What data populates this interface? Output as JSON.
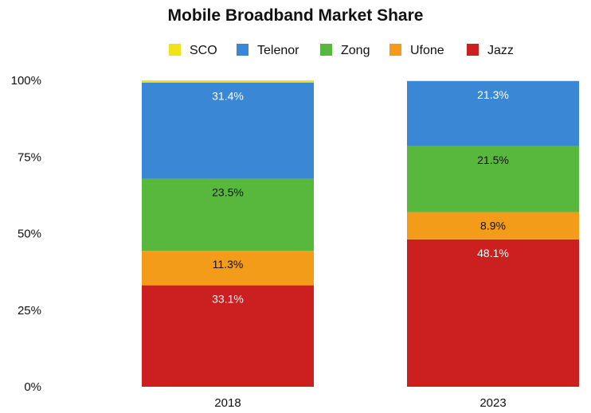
{
  "chart_data": {
    "type": "bar",
    "stacked": true,
    "title": "Mobile Broadband Market Share",
    "xlabel": "",
    "ylabel": "",
    "ylim": [
      0,
      100
    ],
    "categories": [
      "2018",
      "2023"
    ],
    "yticks": [
      "0%",
      "25%",
      "50%",
      "75%",
      "100%"
    ],
    "legend_position": "top",
    "series": [
      {
        "name": "Jazz",
        "color": "#cc1f1f",
        "label_color": "#ffffff",
        "values": [
          33.1,
          48.1
        ],
        "labels": [
          "33.1%",
          "48.1%"
        ]
      },
      {
        "name": "Ufone",
        "color": "#f39c1a",
        "label_color": "#111111",
        "values": [
          11.3,
          8.9
        ],
        "labels": [
          "11.3%",
          "8.9%"
        ]
      },
      {
        "name": "Zong",
        "color": "#58b83e",
        "label_color": "#111111",
        "values": [
          23.5,
          21.5
        ],
        "labels": [
          "23.5%",
          "21.5%"
        ]
      },
      {
        "name": "Telenor",
        "color": "#3a87d6",
        "label_color": "#ffffff",
        "values": [
          31.4,
          21.3
        ],
        "labels": [
          "31.4%",
          "21.3%"
        ]
      },
      {
        "name": "SCO",
        "color": "#f0e21c",
        "label_color": "#111111",
        "values": [
          0.7,
          0.0
        ],
        "labels": [
          "",
          ""
        ]
      }
    ],
    "legend_order": [
      "SCO",
      "Telenor",
      "Zong",
      "Ufone",
      "Jazz"
    ]
  }
}
